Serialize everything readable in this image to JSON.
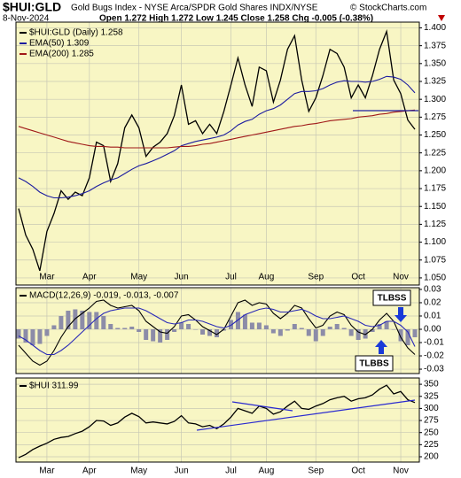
{
  "chart_data": [
    {
      "type": "line",
      "title": "$HUI:GLD",
      "subtitle": "Gold Bugs Index - NYSE Arca/SPDR Gold Shares INDX/NYSE",
      "source": "© StockCharts.com",
      "date": "8-Nov-2024",
      "quote": "Open 1.272  High 1.272  Low 1.245  Close 1.258  Chg -0.005 (-0.38%)",
      "categories": [
        null,
        null,
        null,
        null,
        "Mar",
        null,
        null,
        null,
        null,
        null,
        "Apr",
        null,
        null,
        null,
        null,
        null,
        null,
        "May",
        null,
        null,
        null,
        null,
        null,
        "Jun",
        null,
        null,
        null,
        null,
        null,
        null,
        "Jul",
        null,
        null,
        null,
        null,
        "Aug",
        null,
        null,
        null,
        null,
        null,
        null,
        "Sep",
        null,
        null,
        null,
        null,
        null,
        "Oct",
        null,
        null,
        null,
        null,
        null,
        "Nov",
        null,
        null
      ],
      "series": [
        {
          "name": "$HUI:GLD (Daily) 1.258",
          "color": "#000000",
          "values": [
            1.147,
            1.11,
            1.09,
            1.06,
            1.115,
            1.14,
            1.172,
            1.16,
            1.17,
            1.165,
            1.19,
            1.24,
            1.235,
            1.185,
            1.21,
            1.26,
            1.278,
            1.26,
            1.22,
            1.233,
            1.24,
            1.252,
            1.277,
            1.32,
            1.265,
            1.27,
            1.252,
            1.265,
            1.252,
            1.283,
            1.32,
            1.358,
            1.32,
            1.29,
            1.345,
            1.34,
            1.296,
            1.327,
            1.37,
            1.389,
            1.327,
            1.283,
            1.302,
            1.333,
            1.37,
            1.364,
            1.345,
            1.302,
            1.32,
            1.302,
            1.333,
            1.37,
            1.395,
            1.327,
            1.308,
            1.271,
            1.258
          ]
        },
        {
          "name": "EMA(50) 1.309",
          "color": "#1c1ca0",
          "values": [
            1.19,
            1.185,
            1.178,
            1.17,
            1.165,
            1.162,
            1.162,
            1.163,
            1.165,
            1.168,
            1.172,
            1.178,
            1.183,
            1.187,
            1.19,
            1.196,
            1.202,
            1.207,
            1.21,
            1.214,
            1.218,
            1.223,
            1.228,
            1.235,
            1.238,
            1.241,
            1.243,
            1.245,
            1.247,
            1.25,
            1.256,
            1.264,
            1.269,
            1.272,
            1.279,
            1.284,
            1.287,
            1.292,
            1.3,
            1.308,
            1.311,
            1.311,
            1.312,
            1.315,
            1.32,
            1.324,
            1.326,
            1.325,
            1.325,
            1.324,
            1.325,
            1.328,
            1.332,
            1.331,
            1.328,
            1.32,
            1.309
          ]
        },
        {
          "name": "EMA(200) 1.285",
          "color": "#a01818",
          "values": [
            1.262,
            1.259,
            1.256,
            1.253,
            1.25,
            1.247,
            1.244,
            1.241,
            1.239,
            1.237,
            1.235,
            1.234,
            1.234,
            1.233,
            1.233,
            1.232,
            1.232,
            1.232,
            1.232,
            1.232,
            1.232,
            1.232,
            1.233,
            1.234,
            1.234,
            1.235,
            1.237,
            1.238,
            1.24,
            1.242,
            1.244,
            1.246,
            1.248,
            1.25,
            1.252,
            1.254,
            1.256,
            1.258,
            1.26,
            1.262,
            1.263,
            1.265,
            1.266,
            1.268,
            1.27,
            1.271,
            1.272,
            1.273,
            1.275,
            1.276,
            1.277,
            1.279,
            1.28,
            1.282,
            1.283,
            1.284,
            1.285
          ]
        }
      ],
      "ylim": [
        1.04,
        1.408
      ],
      "yticks": [
        {
          "value": 1.05,
          "label": "1.050"
        },
        1.075,
        {
          "value": 1.1,
          "label": "1.100"
        },
        1.125,
        {
          "value": 1.15,
          "label": "1.150"
        },
        1.175,
        {
          "value": 1.2,
          "label": "1.200"
        },
        1.225,
        {
          "value": 1.25,
          "label": "1.250"
        },
        1.275,
        {
          "value": 1.3,
          "label": "1.300"
        },
        1.325,
        {
          "value": 1.35,
          "label": "1.350"
        },
        1.375,
        {
          "value": 1.4,
          "label": "1.400"
        }
      ],
      "grid": true
    },
    {
      "type": "line",
      "title": "MACD(12,26,9) -0.019, -0.013, -0.007",
      "annotations": [
        "TLBSS",
        "TLBBS"
      ],
      "series": [
        {
          "type": "bar",
          "color": "#8c8ca8",
          "values": [
            -0.007,
            -0.01,
            -0.012,
            -0.011,
            -0.005,
            0.003,
            0.01,
            0.014,
            0.015,
            0.014,
            0.013,
            0.013,
            0.01,
            0.004,
            0.001,
            0.001,
            0.002,
            -0.002,
            -0.008,
            -0.009,
            -0.01,
            -0.008,
            -0.002,
            0.005,
            0.004,
            0.0,
            -0.004,
            -0.005,
            -0.006,
            -0.001,
            0.007,
            0.013,
            0.011,
            0.005,
            0.005,
            0.003,
            -0.003,
            -0.005,
            -0.001,
            0.004,
            0.001,
            -0.005,
            -0.009,
            -0.005,
            0.002,
            0.004,
            0.001,
            -0.005,
            -0.008,
            -0.007,
            -0.002,
            0.004,
            0.006,
            0.0,
            -0.009,
            -0.012,
            -0.006
          ]
        },
        {
          "type": "line",
          "color": "#000000",
          "values": [
            -0.012,
            -0.018,
            -0.024,
            -0.027,
            -0.024,
            -0.016,
            -0.006,
            0.002,
            0.008,
            0.012,
            0.016,
            0.021,
            0.022,
            0.018,
            0.016,
            0.017,
            0.018,
            0.014,
            0.006,
            0.002,
            -0.002,
            -0.003,
            0.002,
            0.01,
            0.011,
            0.007,
            0.002,
            -0.001,
            -0.004,
            0.0,
            0.01,
            0.02,
            0.022,
            0.018,
            0.02,
            0.019,
            0.012,
            0.008,
            0.012,
            0.018,
            0.016,
            0.008,
            0.001,
            0.003,
            0.01,
            0.013,
            0.011,
            0.003,
            -0.002,
            -0.004,
            0.0,
            0.007,
            0.012,
            0.006,
            -0.006,
            -0.014,
            -0.019
          ]
        },
        {
          "type": "line",
          "color": "#2a2ab8",
          "values": [
            -0.005,
            -0.008,
            -0.012,
            -0.016,
            -0.019,
            -0.019,
            -0.016,
            -0.012,
            -0.007,
            -0.002,
            0.003,
            0.008,
            0.012,
            0.014,
            0.015,
            0.016,
            0.016,
            0.016,
            0.014,
            0.011,
            0.008,
            0.005,
            0.004,
            0.005,
            0.007,
            0.007,
            0.006,
            0.004,
            0.002,
            0.001,
            0.003,
            0.007,
            0.011,
            0.013,
            0.015,
            0.016,
            0.015,
            0.013,
            0.013,
            0.014,
            0.015,
            0.013,
            0.01,
            0.008,
            0.008,
            0.009,
            0.01,
            0.008,
            0.006,
            0.003,
            0.002,
            0.003,
            0.006,
            0.006,
            0.003,
            -0.002,
            -0.013
          ]
        }
      ],
      "ylim": [
        -0.0333,
        0.0313
      ],
      "yticks": [
        -0.03,
        -0.02,
        -0.01,
        {
          "value": 0,
          "label": "0.00"
        },
        0.01,
        0.02,
        0.03
      ],
      "grid": true
    },
    {
      "type": "line",
      "title": "$HUI 311.99",
      "categories": [
        null,
        null,
        null,
        null,
        "Mar",
        null,
        null,
        null,
        null,
        null,
        "Apr",
        null,
        null,
        null,
        null,
        null,
        null,
        "May",
        null,
        null,
        null,
        null,
        null,
        "Jun",
        null,
        null,
        null,
        null,
        null,
        null,
        "Jul",
        null,
        null,
        null,
        null,
        "Aug",
        null,
        null,
        null,
        null,
        null,
        null,
        "Sep",
        null,
        null,
        null,
        null,
        null,
        "Oct",
        null,
        null,
        null,
        null,
        null,
        "Nov",
        null,
        null
      ],
      "series": [
        {
          "color": "#000000",
          "values": [
            198,
            205,
            215,
            222,
            228,
            236,
            240,
            242,
            248,
            253,
            262,
            275,
            274,
            265,
            270,
            282,
            290,
            283,
            270,
            272,
            270,
            268,
            273,
            285,
            270,
            268,
            262,
            265,
            258,
            268,
            282,
            300,
            295,
            290,
            305,
            300,
            288,
            293,
            305,
            315,
            300,
            298,
            305,
            310,
            318,
            322,
            325,
            315,
            320,
            322,
            328,
            340,
            348,
            330,
            335,
            318,
            312
          ]
        }
      ],
      "ylim": [
        189,
        363
      ],
      "yticks": [
        200,
        225,
        250,
        275,
        300,
        325,
        350
      ],
      "grid": true
    }
  ]
}
